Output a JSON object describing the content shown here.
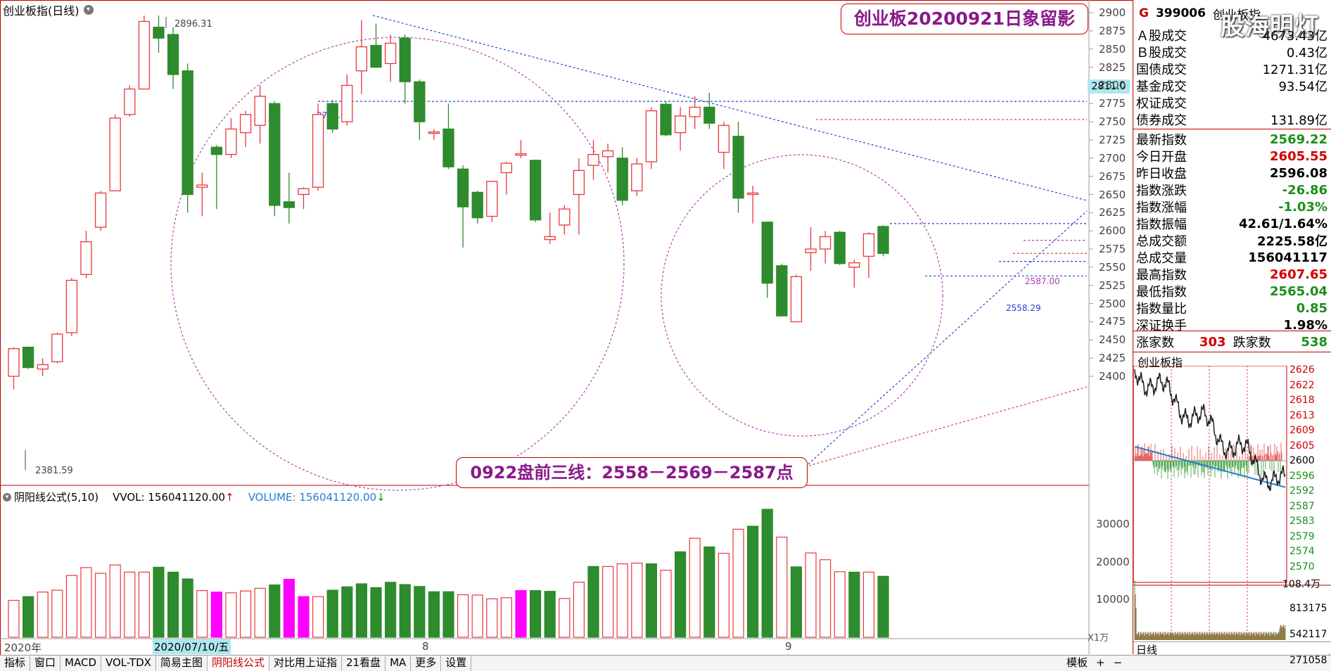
{
  "chart_title": "创业板指(日线)",
  "banner": "创业板20200921日象留影",
  "note": "0922盘前三线：2558－2569－2587点",
  "current_price_box": "2811.0",
  "annotations": {
    "high": "2896.31",
    "low": "2381.59",
    "level1": "2778.00",
    "level2": "2587.00",
    "level3": "2558.29"
  },
  "chart_data": {
    "type": "candlestick",
    "y_range": [
      2380,
      2905
    ],
    "y_ticks": [
      2900,
      2875,
      2850,
      2825,
      2800,
      2775,
      2750,
      2725,
      2700,
      2675,
      2650,
      2625,
      2600,
      2575,
      2550,
      2525,
      2500,
      2475,
      2450,
      2425,
      2400
    ],
    "candles": [
      {
        "o": 2400,
        "h": 2440,
        "l": 2382,
        "c": 2438
      },
      {
        "o": 2440,
        "h": 2441,
        "l": 2410,
        "c": 2412
      },
      {
        "o": 2410,
        "h": 2425,
        "l": 2400,
        "c": 2416
      },
      {
        "o": 2420,
        "h": 2460,
        "l": 2418,
        "c": 2458
      },
      {
        "o": 2460,
        "h": 2535,
        "l": 2455,
        "c": 2532
      },
      {
        "o": 2540,
        "h": 2600,
        "l": 2535,
        "c": 2585
      },
      {
        "o": 2605,
        "h": 2655,
        "l": 2600,
        "c": 2652
      },
      {
        "o": 2655,
        "h": 2760,
        "l": 2655,
        "c": 2755
      },
      {
        "o": 2760,
        "h": 2800,
        "l": 2757,
        "c": 2795
      },
      {
        "o": 2795,
        "h": 2896,
        "l": 2795,
        "c": 2888
      },
      {
        "o": 2880,
        "h": 2896,
        "l": 2845,
        "c": 2865
      },
      {
        "o": 2870,
        "h": 2880,
        "l": 2795,
        "c": 2815
      },
      {
        "o": 2820,
        "h": 2830,
        "l": 2625,
        "c": 2650
      },
      {
        "o": 2660,
        "h": 2680,
        "l": 2620,
        "c": 2663
      },
      {
        "o": 2715,
        "h": 2718,
        "l": 2630,
        "c": 2705
      },
      {
        "o": 2705,
        "h": 2755,
        "l": 2700,
        "c": 2740
      },
      {
        "o": 2735,
        "h": 2765,
        "l": 2715,
        "c": 2760
      },
      {
        "o": 2745,
        "h": 2800,
        "l": 2720,
        "c": 2785
      },
      {
        "o": 2775,
        "h": 2778,
        "l": 2620,
        "c": 2635
      },
      {
        "o": 2640,
        "h": 2680,
        "l": 2610,
        "c": 2632
      },
      {
        "o": 2650,
        "h": 2660,
        "l": 2630,
        "c": 2658
      },
      {
        "o": 2660,
        "h": 2775,
        "l": 2655,
        "c": 2760
      },
      {
        "o": 2775,
        "h": 2780,
        "l": 2735,
        "c": 2740
      },
      {
        "o": 2750,
        "h": 2815,
        "l": 2745,
        "c": 2800
      },
      {
        "o": 2820,
        "h": 2890,
        "l": 2788,
        "c": 2853
      },
      {
        "o": 2855,
        "h": 2885,
        "l": 2830,
        "c": 2825
      },
      {
        "o": 2830,
        "h": 2870,
        "l": 2805,
        "c": 2858
      },
      {
        "o": 2865,
        "h": 2870,
        "l": 2775,
        "c": 2805
      },
      {
        "o": 2805,
        "h": 2808,
        "l": 2725,
        "c": 2750
      },
      {
        "o": 2736,
        "h": 2740,
        "l": 2725,
        "c": 2736
      },
      {
        "o": 2740,
        "h": 2775,
        "l": 2685,
        "c": 2688
      },
      {
        "o": 2685,
        "h": 2690,
        "l": 2577,
        "c": 2633
      },
      {
        "o": 2653,
        "h": 2655,
        "l": 2610,
        "c": 2618
      },
      {
        "o": 2620,
        "h": 2665,
        "l": 2612,
        "c": 2668
      },
      {
        "o": 2680,
        "h": 2695,
        "l": 2650,
        "c": 2693
      },
      {
        "o": 2705,
        "h": 2725,
        "l": 2700,
        "c": 2706
      },
      {
        "o": 2697,
        "h": 2698,
        "l": 2612,
        "c": 2615
      },
      {
        "o": 2588,
        "h": 2625,
        "l": 2582,
        "c": 2592
      },
      {
        "o": 2608,
        "h": 2635,
        "l": 2595,
        "c": 2630
      },
      {
        "o": 2650,
        "h": 2700,
        "l": 2595,
        "c": 2683
      },
      {
        "o": 2690,
        "h": 2725,
        "l": 2670,
        "c": 2705
      },
      {
        "o": 2702,
        "h": 2720,
        "l": 2680,
        "c": 2710
      },
      {
        "o": 2700,
        "h": 2715,
        "l": 2635,
        "c": 2642
      },
      {
        "o": 2655,
        "h": 2700,
        "l": 2648,
        "c": 2692
      },
      {
        "o": 2695,
        "h": 2770,
        "l": 2685,
        "c": 2765
      },
      {
        "o": 2774,
        "h": 2778,
        "l": 2730,
        "c": 2732
      },
      {
        "o": 2735,
        "h": 2770,
        "l": 2710,
        "c": 2758
      },
      {
        "o": 2757,
        "h": 2785,
        "l": 2740,
        "c": 2770
      },
      {
        "o": 2770,
        "h": 2790,
        "l": 2740,
        "c": 2748
      },
      {
        "o": 2708,
        "h": 2750,
        "l": 2685,
        "c": 2745
      },
      {
        "o": 2730,
        "h": 2750,
        "l": 2625,
        "c": 2645
      },
      {
        "o": 2650,
        "h": 2662,
        "l": 2610,
        "c": 2652
      },
      {
        "o": 2612,
        "h": 2612,
        "l": 2508,
        "c": 2528
      },
      {
        "o": 2552,
        "h": 2555,
        "l": 2482,
        "c": 2483
      },
      {
        "o": 2475,
        "h": 2540,
        "l": 2475,
        "c": 2537
      },
      {
        "o": 2570,
        "h": 2605,
        "l": 2545,
        "c": 2575
      },
      {
        "o": 2575,
        "h": 2600,
        "l": 2555,
        "c": 2592
      },
      {
        "o": 2598,
        "h": 2600,
        "l": 2553,
        "c": 2555
      },
      {
        "o": 2550,
        "h": 2560,
        "l": 2522,
        "c": 2556
      },
      {
        "o": 2565,
        "h": 2598,
        "l": 2535,
        "c": 2596
      },
      {
        "o": 2606,
        "h": 2608,
        "l": 2565,
        "c": 2569
      }
    ],
    "volume_ticks": [
      30000,
      20000,
      10000
    ],
    "volume_range": [
      0,
      37000
    ],
    "volumes": [
      9800,
      10800,
      12000,
      12500,
      16400,
      18500,
      17000,
      19200,
      17300,
      17300,
      18600,
      17300,
      15500,
      12400,
      12000,
      11800,
      12300,
      13000,
      13900,
      15400,
      10800,
      10800,
      12500,
      13400,
      14200,
      13200,
      14600,
      14000,
      13500,
      12100,
      12100,
      11300,
      11200,
      10200,
      10500,
      12400,
      12400,
      12200,
      10300,
      14600,
      18800,
      18800,
      19500,
      19700,
      19500,
      17800,
      22700,
      26300,
      24000,
      22300,
      28700,
      29500,
      34000,
      26600,
      18700,
      22400,
      20600,
      17400,
      17300,
      17300,
      16200
    ],
    "volume_colors": [
      "r",
      "g",
      "r",
      "r",
      "r",
      "r",
      "r",
      "r",
      "r",
      "r",
      "g",
      "g",
      "g",
      "r",
      "m",
      "r",
      "r",
      "r",
      "g",
      "m",
      "m",
      "r",
      "g",
      "g",
      "g",
      "g",
      "g",
      "g",
      "g",
      "g",
      "g",
      "r",
      "r",
      "r",
      "r",
      "m",
      "g",
      "g",
      "r",
      "r",
      "g",
      "r",
      "r",
      "r",
      "g",
      "r",
      "g",
      "r",
      "g",
      "r",
      "r",
      "g",
      "g",
      "r",
      "g",
      "r",
      "r",
      "r",
      "g",
      "r",
      "g"
    ],
    "volume_label": "VOL",
    "intraday_y_ticks": [
      "2626",
      "2622",
      "2618",
      "2613",
      "2609",
      "2605",
      "2600",
      "2596",
      "2592",
      "2587",
      "2583",
      "2579",
      "2574",
      "2570"
    ],
    "intraday_vol_ticks": [
      "108.4万",
      "813175",
      "542117",
      "271058"
    ]
  },
  "y_axis_unit": "X1万",
  "vol_header": {
    "name": "阴阳线公式(5,10)",
    "vvol": "VVOL: 156041120.00",
    "vvol_arrow": "↑",
    "volume": "VOLUME: 156041120.00",
    "volume_arrow": "↓"
  },
  "date_axis": {
    "year": "2020年",
    "selected": "2020/07/10/五",
    "m8": "8",
    "m9": "9"
  },
  "tabs": [
    "指标",
    "窗口",
    "MACD",
    "VOL-TDX",
    "简易主图",
    "阴阳线公式",
    "对比用上证指",
    "21看盘",
    "MA",
    "更多",
    "设置"
  ],
  "active_tab": "阴阳线公式",
  "right_tabs": {
    "mb": "模板",
    "plus": "+",
    "minus": "−",
    "daily": "日线"
  },
  "panel": {
    "code": "399006",
    "name": "创业板指",
    "g": "G",
    "watermark": "股海明灯",
    "rows1": [
      {
        "label": "Ａ股成交",
        "value": "4673.43亿"
      },
      {
        "label": "Ｂ股成交",
        "value": "0.43亿"
      },
      {
        "label": "国债成交",
        "value": "1271.31亿"
      },
      {
        "label": "基金成交",
        "value": "93.54亿"
      },
      {
        "label": "权证成交",
        "value": ""
      },
      {
        "label": "债券成交",
        "value": "131.89亿"
      }
    ],
    "rows2": [
      {
        "label": "最新指数",
        "value": "2569.22",
        "color": "#1a8f1a"
      },
      {
        "label": "今日开盘",
        "value": "2605.55",
        "color": "#d00000"
      },
      {
        "label": "昨日收盘",
        "value": "2596.08",
        "color": "#000000"
      },
      {
        "label": "指数涨跌",
        "value": "-26.86",
        "color": "#1a8f1a"
      },
      {
        "label": "指数涨幅",
        "value": "-1.03%",
        "color": "#1a8f1a"
      },
      {
        "label": "指数振幅",
        "value": "42.61/1.64%",
        "color": "#000000"
      },
      {
        "label": "总成交额",
        "value": "2225.58亿",
        "color": "#000000"
      },
      {
        "label": "总成交量",
        "value": "156041117",
        "color": "#000000"
      },
      {
        "label": "最高指数",
        "value": "2607.65",
        "color": "#d00000"
      },
      {
        "label": "最低指数",
        "value": "2565.04",
        "color": "#1a8f1a"
      },
      {
        "label": "指数量比",
        "value": "0.85",
        "color": "#1a8f1a"
      },
      {
        "label": "深证换手",
        "value": "1.98%",
        "color": "#000000"
      }
    ],
    "up_label": "涨家数",
    "up_value": "303",
    "down_label": "跌家数",
    "down_value": "538",
    "mini_title": "创业板指"
  },
  "colors": {
    "up": "#e8383d",
    "down": "#2e8b2e",
    "magenta": "#ff00ff",
    "accent": "#c00000"
  }
}
